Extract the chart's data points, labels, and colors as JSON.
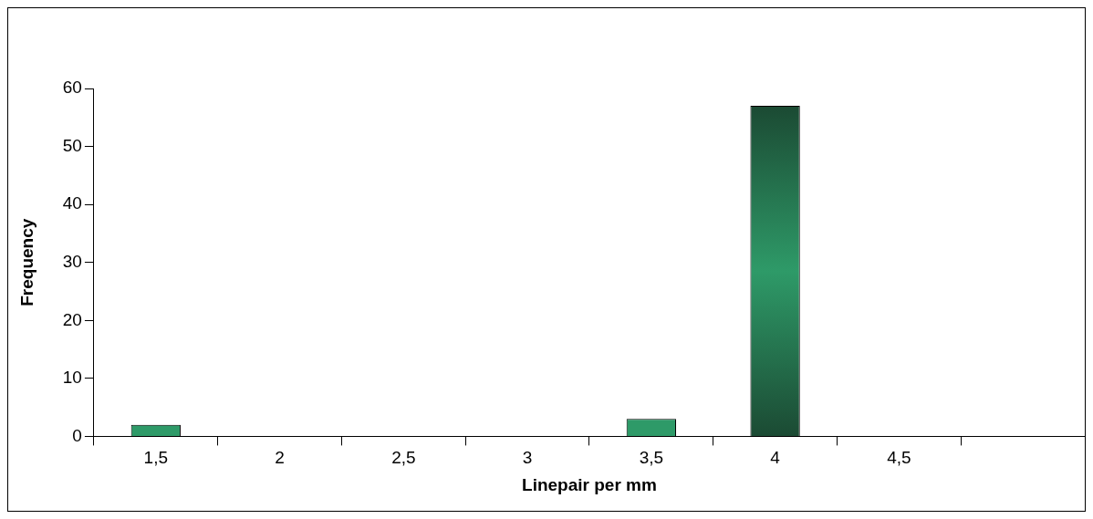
{
  "chart_data": {
    "type": "bar",
    "xlabel": "Linepair per mm",
    "ylabel": "Frequency",
    "categories": [
      "1,5",
      "2",
      "2,5",
      "3",
      "3,5",
      "4",
      "4,5",
      null
    ],
    "values": [
      2,
      0,
      0,
      0,
      3,
      57,
      0,
      0
    ],
    "color": "#2e9a68",
    "ylim": [
      0,
      60
    ],
    "yticks": [
      0,
      10,
      20,
      30,
      40,
      50,
      60
    ],
    "grid": false,
    "legend": false
  }
}
